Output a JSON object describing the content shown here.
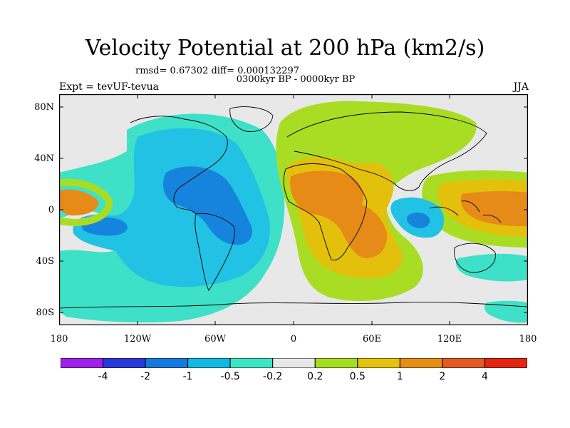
{
  "title": "Velocity Potential at 200 hPa (km2/s)",
  "stats": "rmsd= 0.67302 diff= 0.000132297",
  "period": "0300kyr BP - 0000kyr BP",
  "experiment": "Expt = tevUF-tevua",
  "season": "JJA",
  "lat_labels": [
    "80N",
    "40N",
    "0",
    "40S",
    "80S"
  ],
  "lon_labels": [
    "180",
    "120W",
    "60W",
    "0",
    "60E",
    "120E",
    "180"
  ],
  "colorbar": {
    "labels": [
      "-4",
      "-2",
      "-1",
      "-0.5",
      "-0.2",
      "0.2",
      "0.5",
      "1",
      "2",
      "4"
    ],
    "colors": [
      "#9f21e7",
      "#2738d6",
      "#1479dc",
      "#12b8e2",
      "#3de5c5",
      "#e8e8e8",
      "#a5dd23",
      "#e5c20b",
      "#e58e16",
      "#e25a24",
      "#e32512"
    ]
  },
  "colors": {
    "ocean_bg": "#e8e8e8",
    "neg_light": "#3ee1c8",
    "neg_mid": "#21c2e3",
    "neg_strong": "#1684dd",
    "pos_light": "#a9dd23",
    "pos_mid": "#e3c00c",
    "pos_strong": "#e68a18"
  }
}
